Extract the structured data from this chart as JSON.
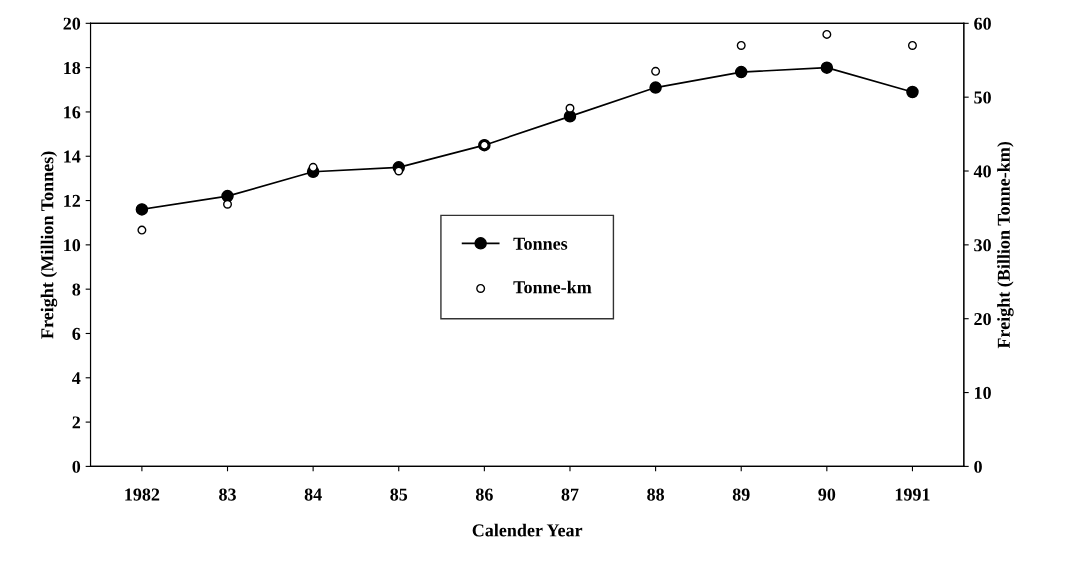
{
  "chart_data": {
    "type": "line",
    "xlabel": "Calender Year",
    "ylabel": "Freight (Million Tonnes)",
    "y2label": "Freight (Billion Tonne-km)",
    "categories": [
      "1982",
      "83",
      "84",
      "85",
      "86",
      "87",
      "88",
      "89",
      "90",
      "1991"
    ],
    "series": [
      {
        "name": "Tonnes",
        "color": "#000000",
        "marker": "circle",
        "line_style": "solid",
        "values": [
          11.6,
          12.2,
          13.3,
          13.5,
          14.5,
          15.8,
          17.1,
          17.8,
          18.0,
          16.9
        ]
      },
      {
        "name": "Tonne-km",
        "type": "scatter",
        "axis": "y2",
        "color": "#000000",
        "marker": "circle",
        "values": [
          32,
          35.5,
          40.5,
          40,
          43.5,
          48.5,
          53.5,
          57,
          58.5,
          57
        ]
      }
    ],
    "ylim": [
      0,
      20
    ],
    "yticks": [
      0,
      2,
      4,
      6,
      8,
      10,
      12,
      14,
      16,
      18,
      20
    ],
    "y2lim": [
      0,
      60
    ],
    "y2ticks": [
      0,
      10,
      20,
      30,
      40,
      50,
      60
    ],
    "legend": "center",
    "grid": false
  }
}
